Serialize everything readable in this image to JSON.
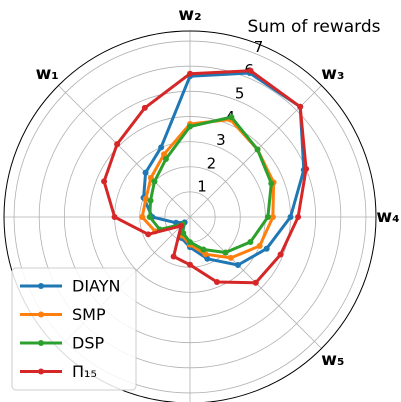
{
  "chart_data": {
    "type": "radar",
    "title": "Sum of rewards",
    "x": [
      0,
      22.5,
      45,
      67.5,
      90,
      112.5,
      135,
      157.5,
      180,
      202.5,
      225,
      247.5,
      270,
      292.5,
      315,
      337.5
    ],
    "series": [
      {
        "name": "DIAYN",
        "color": "#1f77b4",
        "values": [
          4.0,
          4.9,
          6.2,
          6.2,
          5.6,
          3.0,
          2.5,
          2.0,
          1.5,
          0.6,
          0.3,
          0.9,
          1.2,
          1.8,
          2.7,
          3.3
        ]
      },
      {
        "name": "SMP",
        "color": "#ff7f0e",
        "values": [
          3.3,
          3.6,
          3.8,
          4.2,
          3.7,
          2.7,
          2.2,
          1.9,
          1.9,
          1.5,
          0.5,
          0.8,
          1.1,
          1.6,
          2.3,
          3.0
        ]
      },
      {
        "name": "DSP",
        "color": "#2ca02c",
        "values": [
          3.1,
          3.5,
          3.8,
          4.3,
          3.6,
          2.5,
          2.0,
          1.7,
          1.6,
          1.3,
          0.4,
          0.7,
          1.0,
          1.4,
          2.0,
          2.6
        ]
      },
      {
        "name": "Π₁₅",
        "color": "#d62728",
        "values": [
          4.3,
          5.0,
          6.2,
          6.3,
          5.7,
          4.7,
          4.1,
          3.7,
          3.0,
          1.8,
          0.5,
          1.7,
          1.9,
          2.8,
          3.7,
          3.9
        ]
      }
    ],
    "rlim": [
      0,
      7.4
    ],
    "rticks": [
      1,
      2,
      3,
      4,
      5,
      6,
      7
    ],
    "theta_grid": [
      0,
      45,
      90,
      135,
      180,
      225,
      270,
      315
    ],
    "thetaticks": [
      {
        "value": 0,
        "label": "w₄"
      },
      {
        "value": 45,
        "label": "w₃"
      },
      {
        "value": 90,
        "label": "w₂"
      },
      {
        "value": 135,
        "label": "w₁"
      },
      {
        "value": 315,
        "label": "w₅"
      }
    ],
    "legend": "lower left"
  }
}
